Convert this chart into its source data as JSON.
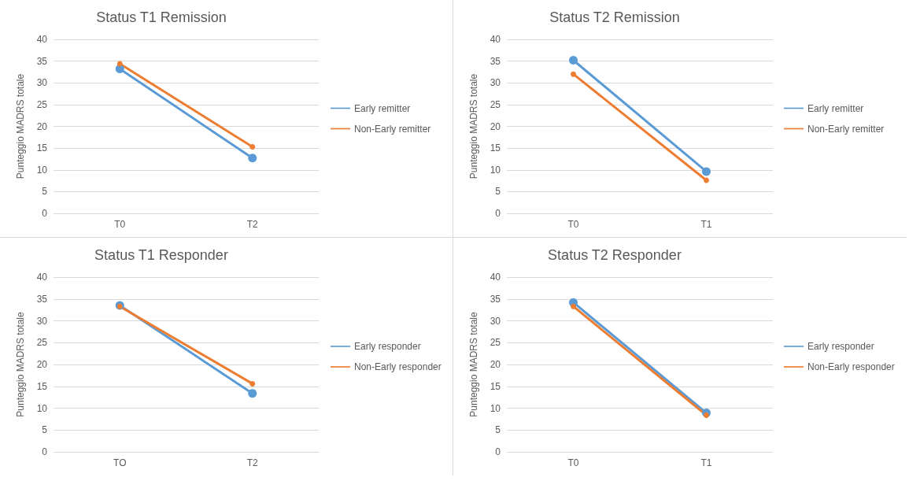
{
  "chart_data": [
    {
      "type": "line",
      "title": "Status T1 Remission",
      "ylabel": "Punteggio MADRS totale",
      "categories": [
        "T0",
        "T2"
      ],
      "series": [
        {
          "name": "Early remitter",
          "color": "#5b9bd5",
          "values": [
            33.2,
            12.7
          ]
        },
        {
          "name": "Non-Early remitter",
          "color": "#ed7d31",
          "values": [
            34.4,
            15.3
          ]
        }
      ],
      "ylim": [
        0,
        40
      ],
      "yticks": [
        0,
        5,
        10,
        15,
        20,
        25,
        30,
        35,
        40
      ],
      "grid": "y",
      "legend": "right",
      "marker": "circle"
    },
    {
      "type": "line",
      "title": "Status T2 Remission",
      "ylabel": "Punteggio MADRS totale",
      "categories": [
        "T0",
        "T1"
      ],
      "series": [
        {
          "name": "Early remitter",
          "color": "#5b9bd5",
          "values": [
            35.2,
            9.6
          ]
        },
        {
          "name": "Non-Early remitter",
          "color": "#ed7d31",
          "values": [
            32,
            7.6
          ]
        }
      ],
      "ylim": [
        0,
        40
      ],
      "yticks": [
        0,
        5,
        10,
        15,
        20,
        25,
        30,
        35,
        40
      ],
      "grid": "y",
      "legend": "right",
      "marker": "circle"
    },
    {
      "type": "line",
      "title": "Status T1 Responder",
      "ylabel": "Punteggio MADRS totale",
      "categories": [
        "TO",
        "T2"
      ],
      "series": [
        {
          "name": "Early responder",
          "color": "#5b9bd5",
          "values": [
            33.5,
            13.4
          ]
        },
        {
          "name": "Non-Early responder",
          "color": "#ed7d31",
          "values": [
            33.3,
            15.6
          ]
        }
      ],
      "ylim": [
        0,
        40
      ],
      "yticks": [
        0,
        5,
        10,
        15,
        20,
        25,
        30,
        35,
        40
      ],
      "grid": "y",
      "legend": "right",
      "marker": "circle"
    },
    {
      "type": "line",
      "title": "Status T2 Responder",
      "ylabel": "Punteggio MADRS totale",
      "categories": [
        "T0",
        "T1"
      ],
      "series": [
        {
          "name": "Early responder",
          "color": "#5b9bd5",
          "values": [
            34.2,
            8.9
          ]
        },
        {
          "name": "Non-Early responder",
          "color": "#ed7d31",
          "values": [
            33.3,
            8.4
          ]
        }
      ],
      "ylim": [
        0,
        40
      ],
      "yticks": [
        0,
        5,
        10,
        15,
        20,
        25,
        30,
        35,
        40
      ],
      "grid": "y",
      "legend": "right",
      "marker": "circle"
    }
  ]
}
